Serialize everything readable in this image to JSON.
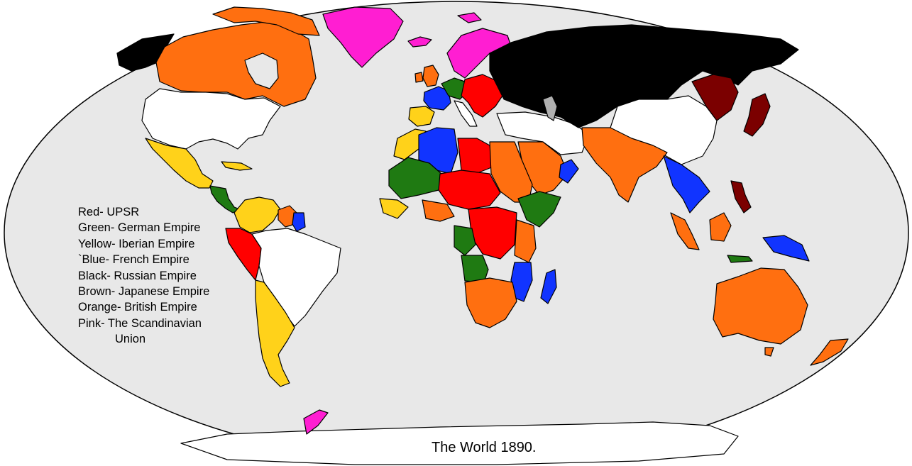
{
  "map": {
    "title": "The World 1890.",
    "legend": [
      "Red- UPSR",
      "Green- German Empire",
      "Yellow- Iberian Empire",
      "`Blue- French Empire",
      "Black- Russian Empire",
      "Brown- Japanese Empire",
      "Orange- British Empire",
      "Pink- The Scandinavian",
      "Union"
    ],
    "colors": {
      "ocean": "#e8e8e8",
      "unclaimed": "#ffffff",
      "red": "#ff0000",
      "green": "#1f7a12",
      "yellow": "#ffd21a",
      "blue": "#1134ff",
      "black": "#000000",
      "brown": "#7b0000",
      "orange": "#ff6f10",
      "pink": "#ff1ed2",
      "lake": "#b0b0b0"
    }
  }
}
